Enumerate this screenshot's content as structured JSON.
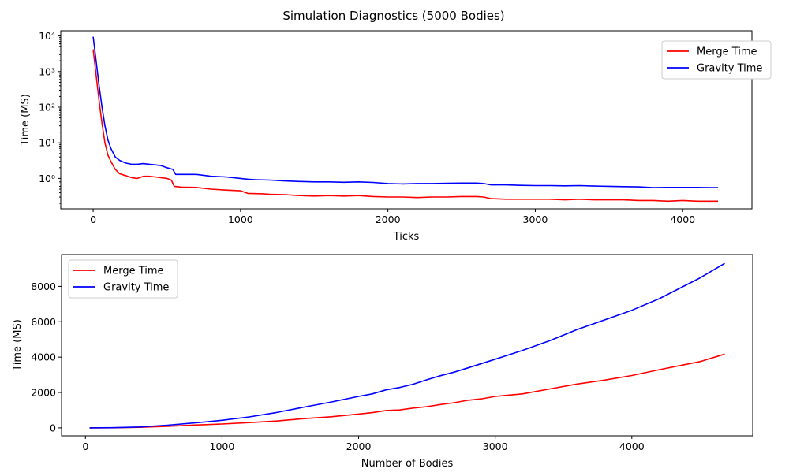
{
  "suptitle": "Simulation Diagnostics (5000 Bodies)",
  "colors": {
    "merge": "#ff0000",
    "gravity": "#0000ff"
  },
  "chart_data": [
    {
      "type": "line",
      "xlabel": "Ticks",
      "ylabel": "Time (MS)",
      "yscale": "log",
      "xlim": [
        -220,
        4470
      ],
      "ylim": [
        0.14,
        14000
      ],
      "x_ticks": [
        0,
        1000,
        2000,
        3000,
        4000
      ],
      "y_ticks": [
        {
          "value": 1,
          "label": "10⁰"
        },
        {
          "value": 10,
          "label": "10¹"
        },
        {
          "value": 100,
          "label": "10²"
        },
        {
          "value": 1000,
          "label": "10³"
        },
        {
          "value": 10000,
          "label": "10⁴"
        }
      ],
      "legend_position": "top-right",
      "grid": false,
      "series": [
        {
          "name": "Merge Time",
          "color": "#ff0000",
          "points": [
            [
              0,
              4200
            ],
            [
              20,
              800
            ],
            [
              40,
              150
            ],
            [
              60,
              35
            ],
            [
              80,
              10
            ],
            [
              100,
              4.5
            ],
            [
              120,
              3
            ],
            [
              150,
              1.8
            ],
            [
              180,
              1.35
            ],
            [
              220,
              1.2
            ],
            [
              260,
              1.05
            ],
            [
              300,
              1.0
            ],
            [
              340,
              1.15
            ],
            [
              380,
              1.15
            ],
            [
              420,
              1.1
            ],
            [
              460,
              1.05
            ],
            [
              500,
              1.0
            ],
            [
              530,
              0.9
            ],
            [
              550,
              0.6
            ],
            [
              600,
              0.57
            ],
            [
              700,
              0.56
            ],
            [
              800,
              0.5
            ],
            [
              900,
              0.47
            ],
            [
              1000,
              0.45
            ],
            [
              1050,
              0.38
            ],
            [
              1150,
              0.37
            ],
            [
              1200,
              0.36
            ],
            [
              1300,
              0.35
            ],
            [
              1400,
              0.33
            ],
            [
              1500,
              0.32
            ],
            [
              1600,
              0.33
            ],
            [
              1700,
              0.32
            ],
            [
              1800,
              0.33
            ],
            [
              1900,
              0.31
            ],
            [
              2000,
              0.3
            ],
            [
              2100,
              0.3
            ],
            [
              2200,
              0.29
            ],
            [
              2300,
              0.3
            ],
            [
              2400,
              0.3
            ],
            [
              2500,
              0.31
            ],
            [
              2600,
              0.31
            ],
            [
              2650,
              0.3
            ],
            [
              2700,
              0.27
            ],
            [
              2800,
              0.26
            ],
            [
              2900,
              0.26
            ],
            [
              3000,
              0.26
            ],
            [
              3100,
              0.26
            ],
            [
              3200,
              0.25
            ],
            [
              3300,
              0.26
            ],
            [
              3400,
              0.25
            ],
            [
              3500,
              0.25
            ],
            [
              3600,
              0.25
            ],
            [
              3700,
              0.24
            ],
            [
              3800,
              0.24
            ],
            [
              3900,
              0.23
            ],
            [
              4000,
              0.24
            ],
            [
              4100,
              0.23
            ],
            [
              4200,
              0.23
            ],
            [
              4240,
              0.23
            ]
          ]
        },
        {
          "name": "Gravity Time",
          "color": "#0000ff",
          "points": [
            [
              0,
              9500
            ],
            [
              20,
              2000
            ],
            [
              40,
              400
            ],
            [
              60,
              100
            ],
            [
              80,
              30
            ],
            [
              100,
              12
            ],
            [
              120,
              7
            ],
            [
              150,
              4
            ],
            [
              180,
              3.2
            ],
            [
              220,
              2.7
            ],
            [
              260,
              2.5
            ],
            [
              300,
              2.5
            ],
            [
              340,
              2.6
            ],
            [
              380,
              2.5
            ],
            [
              420,
              2.4
            ],
            [
              460,
              2.3
            ],
            [
              500,
              2.0
            ],
            [
              540,
              1.8
            ],
            [
              560,
              1.3
            ],
            [
              600,
              1.3
            ],
            [
              700,
              1.3
            ],
            [
              800,
              1.15
            ],
            [
              900,
              1.1
            ],
            [
              1000,
              1.0
            ],
            [
              1050,
              0.95
            ],
            [
              1100,
              0.92
            ],
            [
              1200,
              0.9
            ],
            [
              1300,
              0.85
            ],
            [
              1400,
              0.82
            ],
            [
              1500,
              0.8
            ],
            [
              1600,
              0.8
            ],
            [
              1700,
              0.78
            ],
            [
              1800,
              0.8
            ],
            [
              1900,
              0.77
            ],
            [
              2000,
              0.72
            ],
            [
              2100,
              0.7
            ],
            [
              2200,
              0.72
            ],
            [
              2300,
              0.72
            ],
            [
              2400,
              0.73
            ],
            [
              2500,
              0.74
            ],
            [
              2600,
              0.74
            ],
            [
              2650,
              0.72
            ],
            [
              2700,
              0.66
            ],
            [
              2800,
              0.66
            ],
            [
              2900,
              0.64
            ],
            [
              3000,
              0.63
            ],
            [
              3100,
              0.63
            ],
            [
              3200,
              0.62
            ],
            [
              3300,
              0.63
            ],
            [
              3400,
              0.61
            ],
            [
              3500,
              0.6
            ],
            [
              3600,
              0.59
            ],
            [
              3700,
              0.58
            ],
            [
              3800,
              0.55
            ],
            [
              3900,
              0.56
            ],
            [
              4000,
              0.56
            ],
            [
              4100,
              0.56
            ],
            [
              4200,
              0.55
            ],
            [
              4240,
              0.55
            ]
          ]
        }
      ]
    },
    {
      "type": "line",
      "xlabel": "Number of Bodies",
      "ylabel": "Time (MS)",
      "yscale": "linear",
      "xlim": [
        -175,
        4885
      ],
      "ylim": [
        -450,
        9800
      ],
      "x_ticks": [
        0,
        1000,
        2000,
        3000,
        4000
      ],
      "y_ticks": [
        {
          "value": 0,
          "label": "0"
        },
        {
          "value": 2000,
          "label": "2000"
        },
        {
          "value": 4000,
          "label": "4000"
        },
        {
          "value": 6000,
          "label": "6000"
        },
        {
          "value": 8000,
          "label": "8000"
        }
      ],
      "legend_position": "top-left",
      "grid": false,
      "series": [
        {
          "name": "Merge Time",
          "color": "#ff0000",
          "points": [
            [
              30,
              0
            ],
            [
              200,
              5
            ],
            [
              400,
              30
            ],
            [
              600,
              90
            ],
            [
              800,
              160
            ],
            [
              1000,
              220
            ],
            [
              1200,
              300
            ],
            [
              1400,
              390
            ],
            [
              1600,
              520
            ],
            [
              1800,
              630
            ],
            [
              2000,
              780
            ],
            [
              2100,
              860
            ],
            [
              2200,
              980
            ],
            [
              2300,
              1010
            ],
            [
              2400,
              1120
            ],
            [
              2500,
              1200
            ],
            [
              2600,
              1320
            ],
            [
              2700,
              1420
            ],
            [
              2800,
              1560
            ],
            [
              2900,
              1640
            ],
            [
              3000,
              1780
            ],
            [
              3200,
              1920
            ],
            [
              3400,
              2200
            ],
            [
              3600,
              2480
            ],
            [
              3800,
              2700
            ],
            [
              4000,
              2960
            ],
            [
              4200,
              3290
            ],
            [
              4500,
              3750
            ],
            [
              4680,
              4170
            ]
          ]
        },
        {
          "name": "Gravity Time",
          "color": "#0000ff",
          "points": [
            [
              30,
              0
            ],
            [
              200,
              10
            ],
            [
              400,
              50
            ],
            [
              600,
              150
            ],
            [
              800,
              280
            ],
            [
              1000,
              430
            ],
            [
              1200,
              620
            ],
            [
              1400,
              870
            ],
            [
              1600,
              1170
            ],
            [
              1800,
              1460
            ],
            [
              2000,
              1780
            ],
            [
              2100,
              1920
            ],
            [
              2200,
              2150
            ],
            [
              2300,
              2280
            ],
            [
              2400,
              2470
            ],
            [
              2500,
              2720
            ],
            [
              2600,
              2950
            ],
            [
              2700,
              3150
            ],
            [
              2800,
              3390
            ],
            [
              3000,
              3880
            ],
            [
              3200,
              4380
            ],
            [
              3400,
              4930
            ],
            [
              3600,
              5560
            ],
            [
              3800,
              6100
            ],
            [
              4000,
              6650
            ],
            [
              4200,
              7300
            ],
            [
              4500,
              8480
            ],
            [
              4680,
              9300
            ]
          ]
        }
      ]
    }
  ]
}
